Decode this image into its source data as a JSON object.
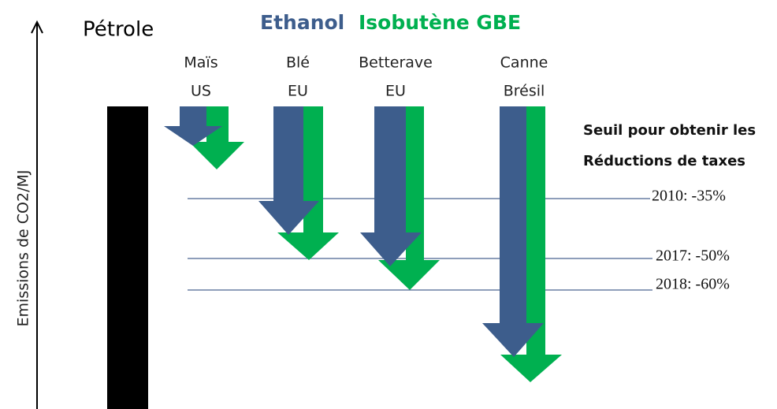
{
  "axis_label": "Emissions de CO2/MJ",
  "reference": "Pétrole",
  "legend": {
    "ethanol": "Ethanol",
    "gbe": "Isobutène GBE"
  },
  "sources": [
    {
      "line1": "Maïs",
      "line2": "US"
    },
    {
      "line1": "Blé",
      "line2": "EU"
    },
    {
      "line1": "Betterave",
      "line2": "EU"
    },
    {
      "line1": "Canne",
      "line2": "Brésil"
    }
  ],
  "threshold_title": {
    "line1": "Seuil pour obtenir les",
    "line2": "Réductions de taxes"
  },
  "thresholds": [
    "2010: -35%",
    "2017: -50%",
    "2018: -60%"
  ]
}
